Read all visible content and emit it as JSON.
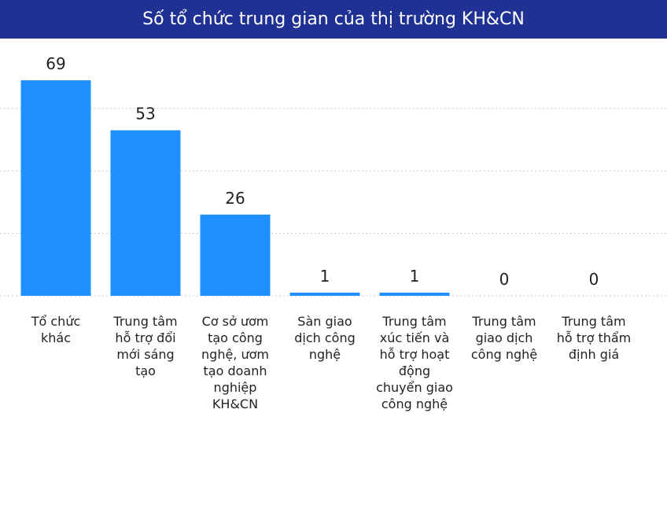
{
  "colors": {
    "title_bg": "#1f3192",
    "bar": "#1e90ff",
    "grid": "#c8c8c8",
    "text": "#222222"
  },
  "chart_data": {
    "type": "bar",
    "title": "Số tổ chức trung gian của thị trường KH&CN",
    "categories": [
      "Tổ chức khác",
      "Trung tâm hỗ trợ đổi mới sáng tạo",
      "Cơ sở ươm tạo công nghệ, ươm tạo doanh nghiệp KH&CN",
      "Sàn giao dịch công nghệ",
      "Trung tâm xúc tiến và hỗ trợ hoạt động chuyển giao công nghệ",
      "Trung tâm giao dịch công nghệ",
      "Trung tâm hỗ trợ thẩm định giá"
    ],
    "values": [
      69,
      53,
      26,
      1,
      1,
      0,
      0
    ],
    "ylim": [
      0,
      80
    ],
    "grid": true,
    "data_labels": true
  }
}
